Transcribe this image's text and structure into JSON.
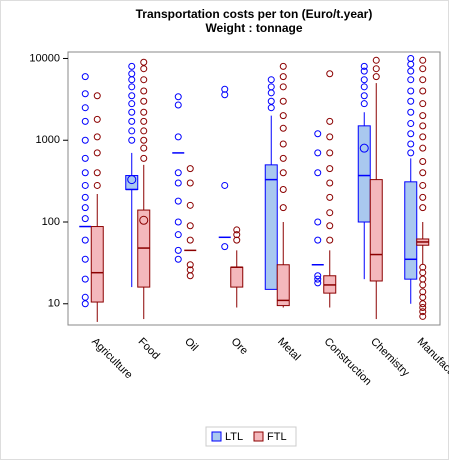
{
  "chart_data": {
    "type": "boxplot",
    "title": "Transportation costs per ton (Euro/t.year)",
    "subtitle": "Weight : tonnage",
    "categories": [
      "Agriculture",
      "Food",
      "Oil",
      "Ore",
      "Metal",
      "Construction",
      "Chemistry",
      "Manufacturing"
    ],
    "log_scale": true,
    "ylim": [
      5.5,
      12000
    ],
    "yticks": [
      10,
      100,
      1000,
      10000
    ],
    "series": [
      {
        "name": "LTL",
        "color": "#0000ff",
        "fill": "#a9c8ef",
        "q1": [
          88,
          250,
          700,
          65,
          15,
          30,
          100,
          20
        ],
        "median": [
          88,
          250,
          700,
          65,
          330,
          30,
          370,
          35
        ],
        "q3": [
          88,
          370,
          700,
          65,
          500,
          30,
          1500,
          310
        ],
        "whisker_low": [
          88,
          16,
          700,
          65,
          15,
          30,
          20,
          10
        ],
        "whisker_high": [
          88,
          700,
          700,
          65,
          2000,
          30,
          2200,
          600
        ],
        "mean": [
          null,
          330,
          null,
          null,
          null,
          null,
          800,
          null
        ],
        "outliers": [
          [
            10,
            12,
            20,
            35,
            60,
            110,
            150,
            200,
            280,
            400,
            600,
            1000,
            1700,
            2500,
            3700,
            6000
          ],
          [
            1000,
            1300,
            1700,
            2200,
            2800,
            3500,
            4500,
            5500,
            6500,
            8000
          ],
          [
            35,
            45,
            70,
            100,
            180,
            300,
            400,
            1100,
            2700,
            3400
          ],
          [
            50,
            280,
            3600,
            4200
          ],
          [
            2500,
            3000,
            3800,
            4500,
            5500
          ],
          [
            18,
            20,
            22,
            60,
            100,
            400,
            700,
            1200
          ],
          [
            2800,
            3500,
            4500,
            5500,
            7000,
            8000
          ],
          [
            700,
            900,
            1200,
            1600,
            2200,
            3000,
            4000,
            5500,
            7000,
            8500,
            10000
          ]
        ]
      },
      {
        "name": "FTL",
        "color": "#8b0000",
        "fill": "#f4b8bc",
        "q1": [
          10.5,
          16,
          45,
          16,
          9.5,
          13.5,
          19,
          52
        ],
        "median": [
          24,
          48,
          45,
          28,
          11,
          17,
          40,
          57
        ],
        "q3": [
          88,
          140,
          45,
          28,
          30,
          22,
          330,
          62
        ],
        "whisker_low": [
          6,
          6.5,
          45,
          9,
          9,
          9,
          6.5,
          30
        ],
        "whisker_high": [
          220,
          500,
          45,
          45,
          100,
          45,
          5000,
          100
        ],
        "mean": [
          null,
          105,
          null,
          null,
          null,
          null,
          null,
          null
        ],
        "outliers": [
          [
            280,
            400,
            700,
            1100,
            1800,
            3500
          ],
          [
            600,
            800,
            1000,
            1300,
            1700,
            2200,
            3000,
            4000,
            5500,
            7500,
            9000
          ],
          [
            22,
            26,
            30,
            60,
            90,
            160,
            300,
            450
          ],
          [
            60,
            70,
            80
          ],
          [
            150,
            250,
            400,
            600,
            900,
            1400,
            2000,
            3000,
            4500,
            6000,
            8000
          ],
          [
            60,
            90,
            130,
            200,
            300,
            450,
            700,
            1100,
            1700,
            6500
          ],
          [
            6000,
            7500,
            9500
          ],
          [
            7,
            8,
            9,
            10,
            12,
            14,
            17,
            20,
            24,
            28,
            150,
            200,
            280,
            400,
            550,
            800,
            1100,
            1500,
            2000,
            2800,
            4000,
            5500,
            7500,
            9500
          ]
        ]
      }
    ]
  }
}
